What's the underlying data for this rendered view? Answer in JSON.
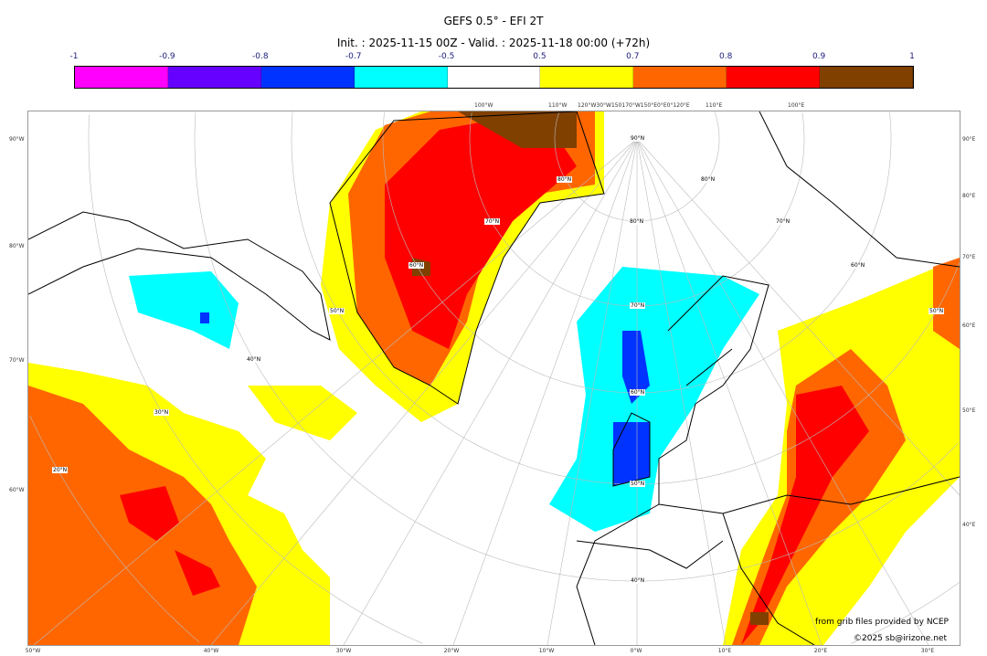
{
  "title": "GEFS 0.5° - EFI 2T",
  "subtitle": "Init. : 2025-11-15 00Z - Valid. : 2025-11-18 00:00 (+72h)",
  "colorbar": {
    "labels": [
      "-1",
      "-0.9",
      "-0.8",
      "-0.7",
      "-0.5",
      "0.5",
      "0.7",
      "0.8",
      "0.9",
      "1"
    ],
    "colors": [
      "#ff00ff",
      "#6600ff",
      "#0033ff",
      "#00ffff",
      "#ffffff",
      "#ffff00",
      "#ff6600",
      "#ff0000",
      "#804000"
    ]
  },
  "axes": {
    "bottom": [
      "50°W",
      "40°W",
      "30°W",
      "20°W",
      "10°W",
      "0°W",
      "10°E",
      "20°E",
      "30°E"
    ],
    "left": [
      "90°W",
      "80°W",
      "70°W",
      "60°W"
    ],
    "right": [
      "90°E",
      "80°E",
      "70°E",
      "60°E",
      "50°E",
      "40°E"
    ],
    "top": [
      "100°W",
      "110°W",
      "120°W30°W150170°W150°E0°E0°120°E",
      "110°E",
      "100°E"
    ]
  },
  "grid_labels": [
    "90°N",
    "80°N",
    "70°N",
    "60°N",
    "50°N",
    "40°N",
    "70°N",
    "60°N",
    "50°N",
    "40°N",
    "30°N",
    "20°N",
    "80°N",
    "70°N",
    "60°N",
    "50°N",
    "80°N"
  ],
  "credits": {
    "line1": "from grib files provided by NCEP",
    "line2": "©2025 sb@irizone.net"
  }
}
